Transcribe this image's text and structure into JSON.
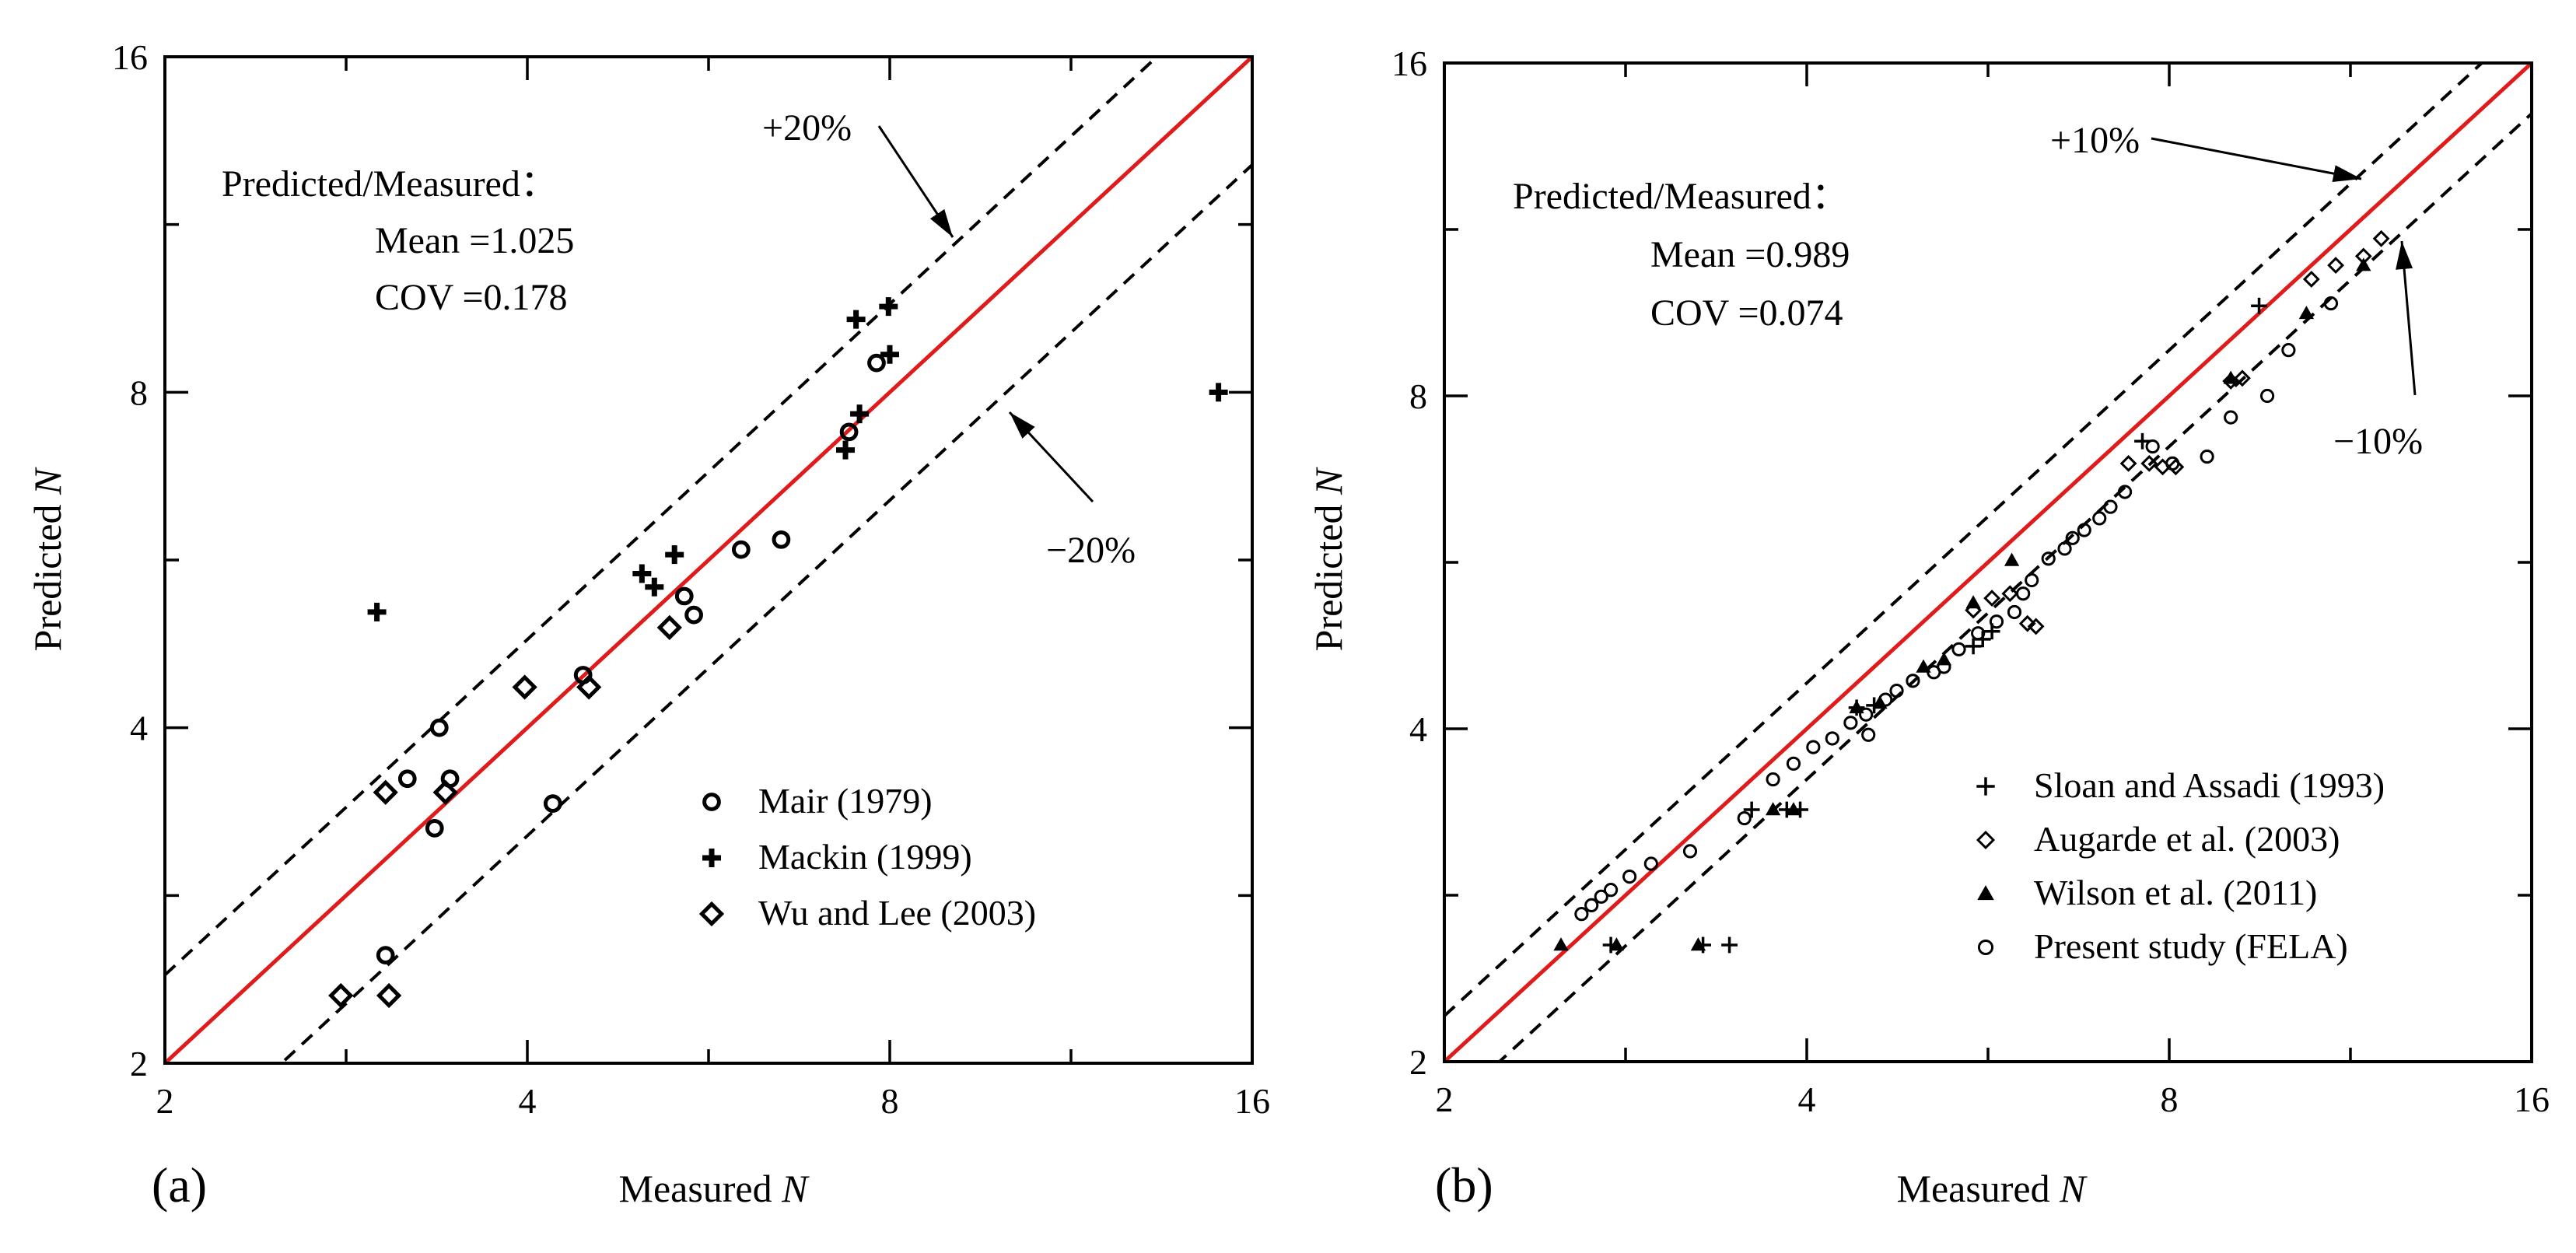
{
  "chart_data": [
    {
      "type": "scatter",
      "panel_label": "(a)",
      "xlabel": "Measured",
      "ylabel": "Predicted",
      "axis_var": "N",
      "axis_scale": "log2",
      "xlim": [
        2,
        16
      ],
      "ylim": [
        2,
        16
      ],
      "xticks": [
        "2",
        "4",
        "8",
        "16"
      ],
      "yticks": [
        "2",
        "4",
        "8",
        "16"
      ],
      "stats": {
        "heading": "Predicted/Measured：",
        "mean": "Mean =1.025",
        "cov": "COV =0.178"
      },
      "bands": {
        "upper_label": "+20%",
        "lower_label": "−20%",
        "upper_factor": 1.2,
        "lower_factor": 0.8
      },
      "series": [
        {
          "name": "Mair (1979)",
          "marker": "circle",
          "points": [
            [
              3.05,
              2.5
            ],
            [
              3.18,
              3.6
            ],
            [
              3.35,
              3.25
            ],
            [
              3.38,
              4.0
            ],
            [
              3.45,
              3.6
            ],
            [
              4.2,
              3.42
            ],
            [
              4.45,
              4.46
            ],
            [
              5.4,
              5.25
            ],
            [
              5.5,
              5.05
            ],
            [
              6.02,
              5.78
            ],
            [
              6.5,
              5.9
            ],
            [
              7.4,
              7.37
            ],
            [
              7.8,
              8.5
            ]
          ]
        },
        {
          "name": "Mackin (1999)",
          "marker": "plus",
          "points": [
            [
              3.0,
              5.08
            ],
            [
              4.98,
              5.5
            ],
            [
              5.1,
              5.35
            ],
            [
              5.3,
              5.72
            ],
            [
              7.35,
              7.1
            ],
            [
              7.55,
              7.65
            ],
            [
              7.5,
              9.3
            ],
            [
              7.98,
              9.55
            ],
            [
              8.0,
              8.65
            ],
            [
              15.0,
              8.0
            ]
          ]
        },
        {
          "name": "Wu and Lee (2003)",
          "marker": "diamond",
          "points": [
            [
              2.8,
              2.3
            ],
            [
              3.05,
              3.5
            ],
            [
              3.07,
              2.3
            ],
            [
              3.42,
              3.5
            ],
            [
              3.98,
              4.35
            ],
            [
              4.5,
              4.35
            ],
            [
              5.25,
              4.92
            ]
          ]
        }
      ]
    },
    {
      "type": "scatter",
      "panel_label": "(b)",
      "xlabel": "Measured",
      "ylabel": "Predicted",
      "axis_var": "N",
      "axis_scale": "log2",
      "xlim": [
        2,
        16
      ],
      "ylim": [
        2,
        16
      ],
      "xticks": [
        "2",
        "4",
        "8",
        "16"
      ],
      "yticks": [
        "2",
        "4",
        "8",
        "16"
      ],
      "stats": {
        "heading": "Predicted/Measured：",
        "mean": "Mean =0.989",
        "cov": "COV =0.074"
      },
      "bands": {
        "upper_label": "+10%",
        "lower_label": "−10%",
        "upper_factor": 1.1,
        "lower_factor": 0.9
      },
      "series": [
        {
          "name": "Sloan and Assadi (1993)",
          "marker": "thin-plus",
          "points": [
            [
              2.75,
              2.55
            ],
            [
              3.28,
              2.55
            ],
            [
              3.45,
              2.55
            ],
            [
              3.6,
              3.38
            ],
            [
              3.85,
              3.38
            ],
            [
              3.95,
              3.38
            ],
            [
              4.4,
              4.18
            ],
            [
              4.55,
              4.2
            ],
            [
              5.5,
              4.75
            ],
            [
              5.6,
              4.82
            ],
            [
              5.7,
              4.9
            ],
            [
              7.6,
              7.28
            ],
            [
              9.5,
              9.65
            ]
          ]
        },
        {
          "name": "Augarde et al. (2003)",
          "marker": "small-diamond",
          "points": [
            [
              5.5,
              5.12
            ],
            [
              5.7,
              5.25
            ],
            [
              5.9,
              5.3
            ],
            [
              6.1,
              4.98
            ],
            [
              6.2,
              4.95
            ],
            [
              7.4,
              6.95
            ],
            [
              7.7,
              6.95
            ],
            [
              7.9,
              6.9
            ],
            [
              8.1,
              6.9
            ],
            [
              9.0,
              8.25
            ],
            [
              9.2,
              8.3
            ],
            [
              10.5,
              10.2
            ],
            [
              11.0,
              10.5
            ],
            [
              11.6,
              10.7
            ],
            [
              12.0,
              11.1
            ]
          ]
        },
        {
          "name": "Wilson et al. (2011)",
          "marker": "triangle",
          "points": [
            [
              2.5,
              2.55
            ],
            [
              2.78,
              2.55
            ],
            [
              3.25,
              2.55
            ],
            [
              3.75,
              3.38
            ],
            [
              3.9,
              3.38
            ],
            [
              4.4,
              4.18
            ],
            [
              4.6,
              4.22
            ],
            [
              5.0,
              4.55
            ],
            [
              5.2,
              4.62
            ],
            [
              5.5,
              5.2
            ],
            [
              5.92,
              5.68
            ],
            [
              9.0,
              8.3
            ],
            [
              10.4,
              9.5
            ],
            [
              11.6,
              10.5
            ]
          ]
        },
        {
          "name": "Present study (FELA)",
          "marker": "small-circle",
          "points": [
            [
              2.6,
              2.72
            ],
            [
              2.65,
              2.77
            ],
            [
              2.7,
              2.82
            ],
            [
              2.75,
              2.86
            ],
            [
              2.85,
              2.94
            ],
            [
              2.97,
              3.02
            ],
            [
              3.2,
              3.1
            ],
            [
              3.55,
              3.32
            ],
            [
              3.75,
              3.6
            ],
            [
              3.9,
              3.72
            ],
            [
              4.05,
              3.85
            ],
            [
              4.2,
              3.92
            ],
            [
              4.35,
              4.05
            ],
            [
              4.48,
              4.12
            ],
            [
              4.5,
              3.95
            ],
            [
              4.65,
              4.25
            ],
            [
              4.75,
              4.33
            ],
            [
              4.9,
              4.42
            ],
            [
              5.1,
              4.5
            ],
            [
              5.2,
              4.55
            ],
            [
              5.35,
              4.72
            ],
            [
              5.55,
              4.88
            ],
            [
              5.75,
              5.0
            ],
            [
              5.95,
              5.1
            ],
            [
              6.05,
              5.3
            ],
            [
              6.15,
              5.45
            ],
            [
              6.35,
              5.7
            ],
            [
              6.55,
              5.82
            ],
            [
              6.65,
              5.95
            ],
            [
              6.8,
              6.05
            ],
            [
              7.0,
              6.2
            ],
            [
              7.15,
              6.35
            ],
            [
              7.35,
              6.55
            ],
            [
              7.75,
              7.2
            ],
            [
              8.05,
              6.95
            ],
            [
              8.6,
              7.05
            ],
            [
              9.0,
              7.65
            ],
            [
              9.65,
              8.0
            ],
            [
              10.05,
              8.8
            ],
            [
              10.9,
              9.7
            ]
          ]
        }
      ]
    }
  ]
}
